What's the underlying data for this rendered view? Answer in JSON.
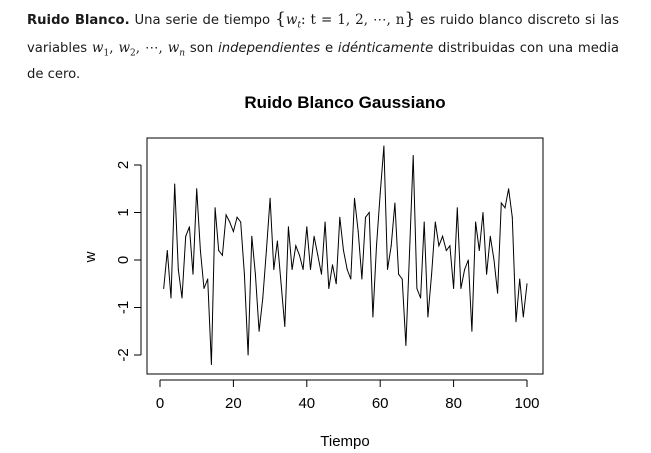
{
  "paragraph": {
    "term": "Ruido Blanco.",
    "text1": "Una serie de tiempo",
    "set_open": "{",
    "set_var": "w",
    "set_sub": "t",
    "set_mid": ": t = 1, 2, ⋯, n",
    "set_close": "}",
    "text2": "es ruido blanco discreto si las variables",
    "vars": "w",
    "text3": "son",
    "em1": "independientes",
    "text4": "e",
    "em2": "idénticamente",
    "text5": "distribuidas con una media de cero."
  },
  "chart_data": {
    "type": "line",
    "title": "Ruido Blanco Gaussiano",
    "xlabel": "Tiempo",
    "ylabel": "w",
    "xlim": [
      0,
      100
    ],
    "ylim": [
      -2.2,
      2.4
    ],
    "xticks": [
      0,
      20,
      40,
      60,
      80,
      100
    ],
    "yticks": [
      -2,
      -1,
      0,
      1,
      2
    ],
    "line_color": "#000000",
    "grid": false,
    "series": [
      {
        "x": [
          1,
          2,
          3,
          4,
          5,
          6,
          7,
          8,
          9,
          10,
          11,
          12,
          13,
          14,
          15,
          16,
          17,
          18,
          19,
          20,
          21,
          22,
          23,
          24,
          25,
          26,
          27,
          28,
          29,
          30,
          31,
          32,
          33,
          34,
          35,
          36,
          37,
          38,
          39,
          40,
          41,
          42,
          43,
          44,
          45,
          46,
          47,
          48,
          49,
          50,
          51,
          52,
          53,
          54,
          55,
          56,
          57,
          58,
          59,
          60,
          61,
          62,
          63,
          64,
          65,
          66,
          67,
          68,
          69,
          70,
          71,
          72,
          73,
          74,
          75,
          76,
          77,
          78,
          79,
          80,
          81,
          82,
          83,
          84,
          85,
          86,
          87,
          88,
          89,
          90,
          91,
          92,
          93,
          94,
          95,
          96,
          97,
          98,
          99,
          100
        ],
        "y": [
          -0.6,
          0.2,
          -0.8,
          1.6,
          -0.2,
          -0.8,
          0.5,
          0.7,
          -0.3,
          1.5,
          0.2,
          -0.6,
          -0.4,
          -2.2,
          1.1,
          0.2,
          0.1,
          0.95,
          0.8,
          0.6,
          0.9,
          0.8,
          -0.3,
          -2.0,
          0.5,
          -0.3,
          -1.5,
          -0.8,
          0.2,
          1.3,
          -0.2,
          0.4,
          -0.5,
          -1.4,
          0.7,
          -0.2,
          0.3,
          0.1,
          -0.2,
          0.7,
          -0.2,
          0.5,
          0.1,
          -0.3,
          0.8,
          -0.6,
          -0.1,
          -0.5,
          0.9,
          0.2,
          -0.2,
          -0.4,
          1.3,
          0.6,
          -0.4,
          0.9,
          1.0,
          -1.2,
          0.3,
          1.4,
          2.4,
          -0.2,
          0.3,
          1.2,
          -0.3,
          -0.4,
          -1.8,
          0.2,
          2.2,
          -0.6,
          -0.8,
          0.8,
          -1.2,
          -0.3,
          0.8,
          0.3,
          0.5,
          0.2,
          0.3,
          -0.6,
          1.1,
          -0.6,
          -0.2,
          0.0,
          -1.5,
          0.8,
          0.2,
          1.0,
          -0.3,
          0.5,
          0.0,
          -0.7,
          1.2,
          1.1,
          1.5,
          0.9,
          -1.3,
          -0.4,
          -1.2,
          -0.5
        ]
      }
    ]
  }
}
